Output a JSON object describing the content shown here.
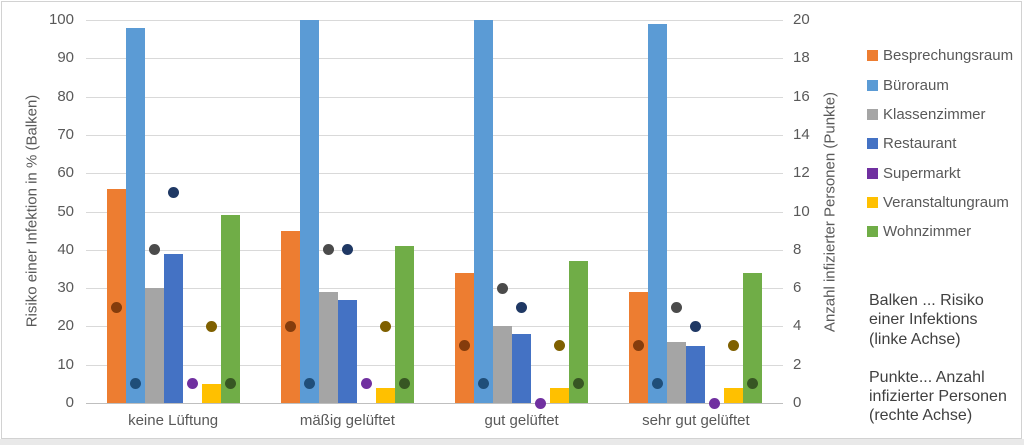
{
  "chart_data": {
    "type": "bar",
    "categories": [
      "keine Lüftung",
      "mäßig gelüftet",
      "gut gelüftet",
      "sehr gut gelüftet"
    ],
    "series": [
      {
        "name": "Besprechungsraum",
        "color": "#ED7D31",
        "dot_color": "#843C0C",
        "bars": [
          56,
          45,
          34,
          29
        ],
        "points": [
          5,
          4,
          3,
          3
        ]
      },
      {
        "name": "Büroraum",
        "color": "#5B9BD5",
        "dot_color": "#1F4E79",
        "bars": [
          98,
          100,
          100,
          99
        ],
        "points": [
          1,
          1,
          1,
          1
        ]
      },
      {
        "name": "Klassenzimmer",
        "color": "#A5A5A5",
        "dot_color": "#4B4B4B",
        "bars": [
          30,
          29,
          20,
          16
        ],
        "points": [
          8,
          8,
          6,
          5
        ]
      },
      {
        "name": "Restaurant",
        "color": "#4472C4",
        "dot_color": "#1F3864",
        "bars": [
          39,
          27,
          18,
          15
        ],
        "points": [
          11,
          8,
          5,
          4
        ]
      },
      {
        "name": "Supermarkt",
        "color": "#7030A0",
        "dot_color": "#7030A0",
        "bars": [
          0,
          0,
          0,
          0
        ],
        "points": [
          1,
          1,
          0,
          0
        ]
      },
      {
        "name": "Veranstaltungraum",
        "color": "#FFC000",
        "dot_color": "#7F6000",
        "bars": [
          5,
          4,
          4,
          4
        ],
        "points": [
          4,
          4,
          3,
          3
        ]
      },
      {
        "name": "Wohnzimmer",
        "color": "#70AD47",
        "dot_color": "#375623",
        "bars": [
          49,
          41,
          37,
          34
        ],
        "points": [
          1,
          1,
          1,
          1
        ]
      }
    ],
    "ylabel_left": "Risiko einer Infektion in % (Balken)",
    "ylabel_right": "Anzahl infizierter Personen (Punkte)",
    "y_left_ticks": [
      0,
      10,
      20,
      30,
      40,
      50,
      60,
      70,
      80,
      90,
      100
    ],
    "y_right_ticks": [
      0,
      2,
      4,
      6,
      8,
      10,
      12,
      14,
      16,
      18,
      20
    ],
    "ylim_left": [
      0,
      100
    ],
    "ylim_right": [
      0,
      20
    ],
    "grid": true,
    "legend_position": "right",
    "note_bars": "Balken ... Risiko\neiner Infektions\n(linke Achse)",
    "note_points": "Punkte... Anzahl\ninfizierter Personen\n(rechte Achse)"
  }
}
